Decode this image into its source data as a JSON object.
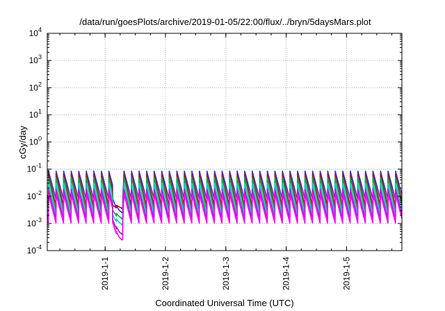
{
  "chart_data": {
    "type": "line",
    "title": "/data/run/goesPlots/archive/2019-01-05/22:00/flux/../bryn/5daysMars.plot",
    "xlabel": "Coordinated Universal Time (UTC)",
    "ylabel": "cGy/day",
    "y_scale": "log",
    "ylim": [
      0.0001,
      10000
    ],
    "xlim": [
      "2018-12-31T01:00",
      "2019-01-05T22:00"
    ],
    "x_ticks": [
      {
        "label": "2019-1-1",
        "value": "2019-01-01T00:00"
      },
      {
        "label": "2019-1-2",
        "value": "2019-01-02T00:00"
      },
      {
        "label": "2019-1-3",
        "value": "2019-01-03T00:00"
      },
      {
        "label": "2019-1-4",
        "value": "2019-01-04T00:00"
      },
      {
        "label": "2019-1-5",
        "value": "2019-01-05T00:00"
      }
    ],
    "y_ticks": [
      {
        "value": 0.0001,
        "base": "10",
        "exp": "-4"
      },
      {
        "value": 0.001,
        "base": "10",
        "exp": "-3"
      },
      {
        "value": 0.01,
        "base": "10",
        "exp": "-2"
      },
      {
        "value": 0.1,
        "base": "10",
        "exp": "-1"
      },
      {
        "value": 1,
        "base": "10",
        "exp": "0"
      },
      {
        "value": 10,
        "base": "10",
        "exp": "1"
      },
      {
        "value": 100,
        "base": "10",
        "exp": "2"
      },
      {
        "value": 1000,
        "base": "10",
        "exp": "3"
      },
      {
        "value": 10000,
        "base": "10",
        "exp": "4"
      }
    ],
    "grid": true,
    "legend": "none",
    "series_pattern": {
      "description_note": "periodic sawtooth dose-rate traces",
      "period_hours": 3,
      "first_peak": "2018-12-31T01:30",
      "dip_start": "2019-01-01T03:00",
      "dip_end": "2019-01-01T07:00"
    },
    "series": [
      {
        "color": "#3333cc",
        "peak": 0.085,
        "trough": 0.0075,
        "dip_min": 0.0025
      },
      {
        "color": "#cc0000",
        "peak": 0.065,
        "trough": 0.0042,
        "dip_min": 0.0035
      },
      {
        "color": "#00aa44",
        "peak": 0.05,
        "trough": 0.0028,
        "dip_min": 0.0015
      },
      {
        "color": "#00cccc",
        "peak": 0.03,
        "trough": 0.0018,
        "dip_min": 0.0009
      },
      {
        "color": "#cc00cc",
        "peak": 0.018,
        "trough": 0.0013,
        "dip_min": 0.0004
      },
      {
        "color": "#ff00ff",
        "peak": 0.012,
        "trough": 0.001,
        "dip_min": 0.00025
      }
    ]
  }
}
